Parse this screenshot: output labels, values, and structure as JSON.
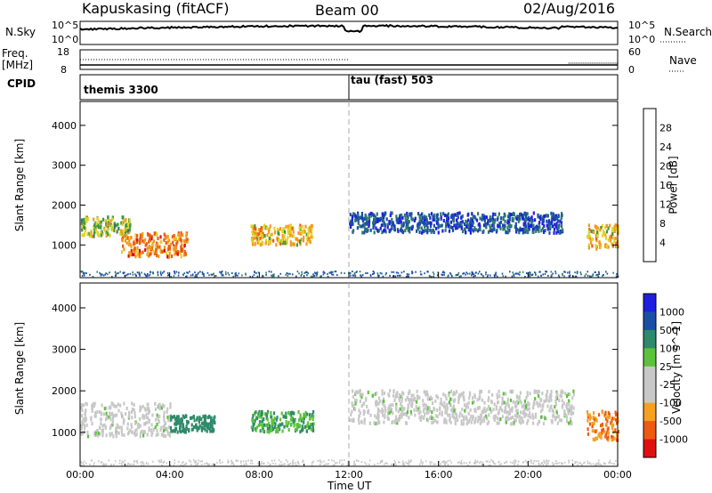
{
  "header": {
    "station": "Kapuskasing (fitACF)",
    "beam": "Beam 00",
    "date": "02/Aug/2016"
  },
  "panels": {
    "nsky_label": "N.Sky",
    "nsearch_label": "N.Search",
    "nsky_ticks": [
      "10^5",
      "10^0"
    ],
    "nsearch_ticks": [
      "10^5",
      "10^0"
    ],
    "freq_label": "Freq.",
    "freq_unit": "[MHz]",
    "freq_ticks": [
      "18",
      "8"
    ],
    "nave_label": "Nave",
    "nave_ticks": [
      "60",
      "0"
    ],
    "cpid_label": "CPID",
    "cpid_modes": [
      "themis 3300",
      "tau (fast) 503"
    ]
  },
  "colors": {
    "power_scale": [
      "#1f1fe0",
      "#1a4fa6",
      "#2e7a6a",
      "#3c9a3c",
      "#e3d22a",
      "#f29a1f",
      "#ee5a12",
      "#d81010"
    ],
    "velocity_scale": [
      "#e01010",
      "#ee5a12",
      "#f5a020",
      "#c8c8c8",
      "#c8c8c8",
      "#5cc23c",
      "#2e8a6a",
      "#1a4fa6",
      "#1f1fe0"
    ]
  },
  "chart_data": [
    {
      "type": "heatmap",
      "title": "",
      "ylabel": "Slant Range [km]",
      "xlabel": "",
      "xlim": [
        "00:00",
        "24:00"
      ],
      "ylim": [
        180,
        4600
      ],
      "yticks": [
        "1000",
        "2000",
        "3000",
        "4000"
      ],
      "colorbar_label": "Power [dB]",
      "colorbar_ticks": [
        "4",
        "8",
        "12",
        "16",
        "20",
        "24",
        "28"
      ],
      "echo_regions": [
        {
          "t_start": 0.0,
          "t_end": 2.2,
          "range_low": 1200,
          "range_high": 1700,
          "level_db": 16
        },
        {
          "t_start": 1.8,
          "t_end": 4.8,
          "range_low": 700,
          "range_high": 1300,
          "level_db": 24
        },
        {
          "t_start": 7.6,
          "t_end": 10.4,
          "range_low": 1000,
          "range_high": 1500,
          "level_db": 20
        },
        {
          "t_start": 12.0,
          "t_end": 21.5,
          "range_low": 1300,
          "range_high": 1800,
          "level_db": 6
        },
        {
          "t_start": 22.6,
          "t_end": 24.0,
          "range_low": 900,
          "range_high": 1500,
          "level_db": 20
        }
      ]
    },
    {
      "type": "heatmap",
      "title": "",
      "ylabel": "Slant Range [km]",
      "xlabel": "Time UT",
      "xlim": [
        "00:00",
        "24:00"
      ],
      "ylim": [
        180,
        4600
      ],
      "yticks": [
        "1000",
        "2000",
        "3000",
        "4000"
      ],
      "xticks": [
        "00:00",
        "04:00",
        "08:00",
        "12:00",
        "16:00",
        "20:00",
        "00:00"
      ],
      "colorbar_label": "Velocity [m s^-1]",
      "colorbar_ticks": [
        "1000",
        "500",
        "100",
        "25",
        "-25",
        "-100",
        "-500",
        "-1000"
      ],
      "echo_regions": [
        {
          "t_start": 0.0,
          "t_end": 4.0,
          "range_low": 900,
          "range_high": 1700,
          "velocity": 0
        },
        {
          "t_start": 4.0,
          "t_end": 6.0,
          "range_low": 1000,
          "range_high": 1400,
          "velocity": 150
        },
        {
          "t_start": 7.6,
          "t_end": 10.4,
          "range_low": 1000,
          "range_high": 1500,
          "velocity": 100
        },
        {
          "t_start": 12.0,
          "t_end": 22.0,
          "range_low": 1200,
          "range_high": 2000,
          "velocity": 0
        },
        {
          "t_start": 22.6,
          "t_end": 24.0,
          "range_low": 800,
          "range_high": 1500,
          "velocity": -500
        }
      ]
    }
  ]
}
